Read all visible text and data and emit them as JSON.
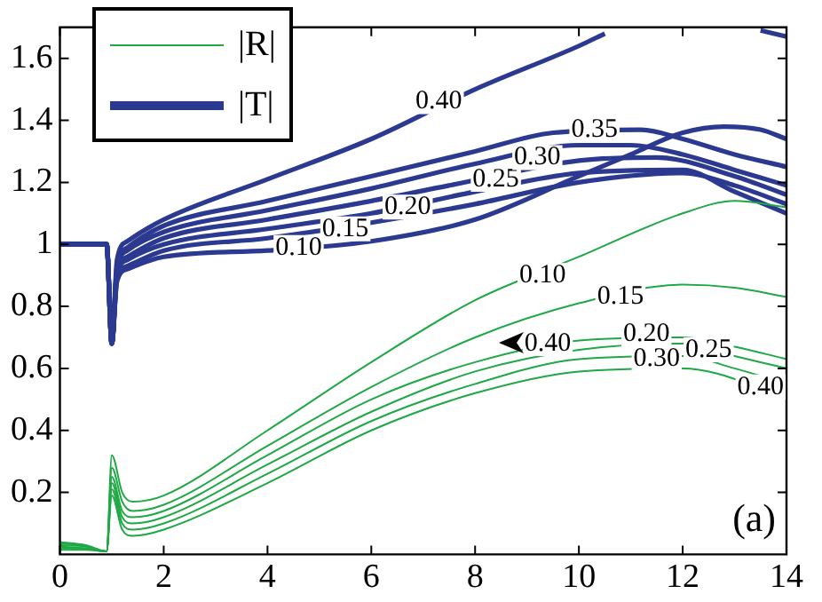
{
  "chart_data": {
    "type": "line",
    "xlim": [
      0,
      14
    ],
    "xticks": [
      0,
      2,
      4,
      6,
      8,
      10,
      12,
      14
    ],
    "ylim": [
      0,
      1.7
    ],
    "yticks": [
      0.2,
      0.4,
      0.6,
      0.8,
      1,
      1.2,
      1.4,
      1.6
    ],
    "grid": false,
    "legend": "top left",
    "marker": "none",
    "line_style": "solid",
    "series": [
      {
        "name": "|R|",
        "color": "#1fa845",
        "x": [
          0,
          0.5,
          0.9,
          1,
          1.2,
          1.4,
          2,
          4,
          6,
          8,
          10,
          12,
          13,
          14
        ],
        "values": [
          0.04,
          0.03,
          0.01,
          0.32,
          0.2,
          0.17,
          0.19,
          0.4,
          0.62,
          0.82,
          0.96,
          1.1,
          1.14,
          1.12
        ]
      },
      {
        "color": "#1fa845",
        "x": [
          0,
          0.5,
          0.9,
          1,
          1.2,
          1.4,
          2,
          4,
          6,
          8,
          10,
          12,
          13,
          14
        ],
        "values": [
          0.035,
          0.028,
          0.01,
          0.28,
          0.17,
          0.14,
          0.16,
          0.35,
          0.54,
          0.7,
          0.81,
          0.87,
          0.86,
          0.83
        ]
      },
      {
        "color": "#1fa845",
        "x": [
          0,
          0.5,
          0.9,
          1,
          1.2,
          1.4,
          2,
          4,
          6,
          8,
          10,
          12,
          13,
          14
        ],
        "values": [
          0.03,
          0.025,
          0.01,
          0.25,
          0.14,
          0.12,
          0.14,
          0.32,
          0.5,
          0.62,
          0.69,
          0.7,
          0.67,
          0.63
        ]
      },
      {
        "color": "#1fa845",
        "x": [
          0,
          0.5,
          0.9,
          1,
          1.2,
          1.4,
          2,
          4,
          6,
          8,
          10,
          12,
          13,
          14
        ],
        "values": [
          0.025,
          0.02,
          0.01,
          0.23,
          0.12,
          0.1,
          0.12,
          0.29,
          0.46,
          0.59,
          0.66,
          0.68,
          0.64,
          0.6
        ]
      },
      {
        "color": "#1fa845",
        "x": [
          0,
          0.5,
          0.9,
          1,
          1.2,
          1.4,
          2,
          4,
          6,
          8,
          10,
          12,
          13,
          14
        ],
        "values": [
          0.02,
          0.018,
          0.01,
          0.21,
          0.1,
          0.08,
          0.1,
          0.26,
          0.43,
          0.55,
          0.63,
          0.64,
          0.6,
          0.55
        ]
      },
      {
        "color": "#1fa845",
        "x": [
          0,
          0.5,
          0.9,
          1,
          1.2,
          1.4,
          2,
          4,
          6,
          8,
          10,
          12,
          14
        ],
        "values": [
          0.015,
          0.015,
          0.01,
          0.19,
          0.08,
          0.06,
          0.08,
          0.23,
          0.4,
          0.52,
          0.59,
          0.6,
          0.51
        ]
      },
      {
        "name": "|T|",
        "color": "#2b3990",
        "x": [
          0,
          0.9,
          1,
          1.1,
          1.3,
          2,
          4,
          6,
          8,
          10,
          11,
          12,
          12.8,
          13.5,
          14
        ],
        "values": [
          1,
          1,
          0.68,
          0.88,
          0.92,
          0.96,
          0.98,
          1.01,
          1.08,
          1.22,
          1.29,
          1.36,
          1.38,
          1.37,
          1.34
        ]
      },
      {
        "color": "#2b3990",
        "x": [
          0,
          0.9,
          1,
          1.1,
          1.3,
          2,
          4,
          6,
          8,
          10,
          12,
          13,
          14
        ],
        "values": [
          1,
          1,
          0.68,
          0.89,
          0.93,
          0.98,
          1.02,
          1.07,
          1.13,
          1.2,
          1.23,
          1.19,
          1.13
        ]
      },
      {
        "color": "#2b3990",
        "x": [
          0,
          0.9,
          1,
          1.1,
          1.3,
          2,
          4,
          6,
          8,
          10,
          12,
          13,
          14
        ],
        "values": [
          1,
          1,
          0.68,
          0.9,
          0.95,
          1,
          1.05,
          1.1,
          1.17,
          1.23,
          1.24,
          1.17,
          1.1
        ]
      },
      {
        "color": "#2b3990",
        "x": [
          0,
          0.9,
          1,
          1.1,
          1.3,
          2,
          4,
          6,
          7.5,
          10,
          11.5,
          13,
          14
        ],
        "values": [
          1,
          1,
          0.68,
          0.91,
          0.96,
          1.02,
          1.08,
          1.14,
          1.19,
          1.27,
          1.28,
          1.22,
          1.16
        ]
      },
      {
        "color": "#2b3990",
        "x": [
          0,
          0.9,
          1,
          1.1,
          1.3,
          2,
          4,
          6,
          8,
          10,
          11,
          12,
          13,
          14
        ],
        "values": [
          1,
          1,
          0.68,
          0.92,
          0.98,
          1.04,
          1.11,
          1.18,
          1.26,
          1.32,
          1.32,
          1.29,
          1.24,
          1.19
        ]
      },
      {
        "color": "#2b3990",
        "x": [
          0,
          0.9,
          1,
          1.1,
          1.3,
          2,
          4,
          6,
          8,
          9.5,
          11.2,
          12,
          13,
          14
        ],
        "values": [
          1,
          1,
          0.68,
          0.93,
          0.99,
          1.06,
          1.14,
          1.22,
          1.3,
          1.36,
          1.37,
          1.34,
          1.29,
          1.25
        ]
      },
      {
        "color": "#2b3990",
        "x": [
          0,
          0.9,
          1,
          1.1,
          1.3,
          2,
          4,
          6,
          8,
          10,
          10.5,
          12,
          13.5,
          14
        ],
        "values": [
          1,
          1,
          0.68,
          0.95,
          1.01,
          1.08,
          1.21,
          1.34,
          1.5,
          1.64,
          1.68,
          null,
          1.69,
          1.67
        ]
      }
    ],
    "annotations": [
      {
        "text": "0.10",
        "x": 4.6,
        "y": 0.99
      },
      {
        "text": "0.15",
        "x": 5.5,
        "y": 1.05
      },
      {
        "text": "0.20",
        "x": 6.7,
        "y": 1.12
      },
      {
        "text": "0.25",
        "x": 8.4,
        "y": 1.21
      },
      {
        "text": "0.30",
        "x": 9.2,
        "y": 1.28
      },
      {
        "text": "0.35",
        "x": 10.3,
        "y": 1.37
      },
      {
        "text": "0.40",
        "x": 7.3,
        "y": 1.46
      },
      {
        "text": "0.10",
        "x": 9.3,
        "y": 0.9
      },
      {
        "text": "0.15",
        "x": 10.8,
        "y": 0.83
      },
      {
        "text": "0.40",
        "x": 9.4,
        "y": 0.68
      },
      {
        "text": "0.20",
        "x": 11.3,
        "y": 0.71
      },
      {
        "text": "0.25",
        "x": 12.5,
        "y": 0.66
      },
      {
        "text": "0.30",
        "x": 11.5,
        "y": 0.63
      },
      {
        "text": "0.40",
        "x": 13.5,
        "y": 0.54
      },
      "(a)"
    ]
  }
}
